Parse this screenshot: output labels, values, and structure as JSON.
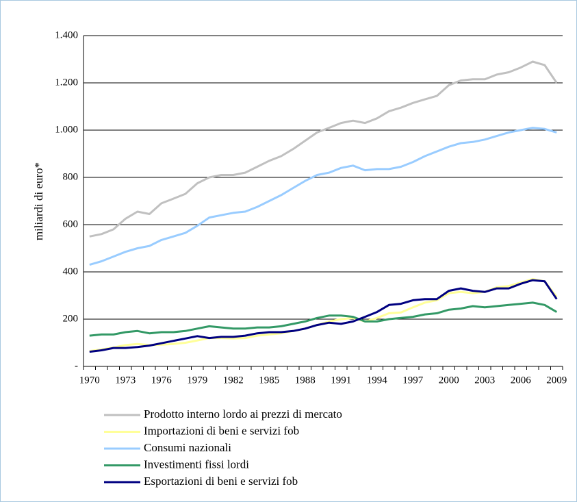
{
  "chart_data": {
    "type": "line",
    "y_label": "miliardi di euro*",
    "categories": [
      "1970",
      null,
      null,
      "1973",
      null,
      null,
      "1976",
      null,
      null,
      "1979",
      null,
      null,
      "1982",
      null,
      null,
      "1985",
      null,
      null,
      "1988",
      null,
      null,
      "1991",
      null,
      null,
      "1994",
      null,
      null,
      "1997",
      null,
      null,
      "2000",
      null,
      null,
      "2003",
      null,
      null,
      "2006",
      null,
      null,
      "2009"
    ],
    "ylim": [
      0,
      1400
    ],
    "yticks": [
      {
        "value": 0,
        "label": "-"
      },
      200,
      400,
      600,
      800,
      {
        "value": 1000,
        "label": "1.000"
      },
      {
        "value": 1200,
        "label": "1.200"
      },
      {
        "value": 1400,
        "label": "1.400"
      }
    ],
    "grid": true,
    "legend": "bottom",
    "series": [
      {
        "name": "Prodotto interno lordo ai prezzi di mercato",
        "color": "#c0c0c0",
        "values": [
          550,
          560,
          580,
          625,
          655,
          645,
          690,
          710,
          730,
          775,
          800,
          810,
          810,
          820,
          845,
          870,
          890,
          920,
          955,
          990,
          1010,
          1030,
          1040,
          1030,
          1050,
          1080,
          1095,
          1115,
          1130,
          1145,
          1190,
          1210,
          1215,
          1215,
          1235,
          1245,
          1265,
          1290,
          1275,
          1200
        ]
      },
      {
        "name": "Importazioni di beni e servizi fob",
        "color": "#ffff99",
        "values": [
          65,
          72,
          80,
          90,
          95,
          90,
          92,
          95,
          100,
          110,
          120,
          120,
          118,
          120,
          130,
          135,
          140,
          150,
          160,
          175,
          190,
          200,
          205,
          190,
          205,
          225,
          228,
          250,
          270,
          280,
          310,
          315,
          310,
          315,
          335,
          340,
          355,
          370,
          360,
          295
        ]
      },
      {
        "name": "Consumi nazionali",
        "color": "#99ccff",
        "values": [
          430,
          445,
          465,
          485,
          500,
          510,
          535,
          550,
          565,
          595,
          630,
          640,
          650,
          655,
          675,
          700,
          725,
          755,
          785,
          810,
          820,
          840,
          850,
          830,
          835,
          835,
          845,
          865,
          890,
          910,
          930,
          945,
          950,
          960,
          975,
          990,
          1000,
          1010,
          1005,
          990
        ]
      },
      {
        "name": "Investimenti fissi lordi",
        "color": "#339966",
        "values": [
          130,
          135,
          135,
          145,
          150,
          140,
          145,
          145,
          150,
          160,
          170,
          165,
          160,
          160,
          165,
          165,
          170,
          180,
          190,
          205,
          215,
          215,
          210,
          190,
          190,
          200,
          205,
          210,
          220,
          225,
          240,
          245,
          255,
          250,
          255,
          260,
          265,
          270,
          260,
          230
        ]
      },
      {
        "name": "Esportazioni di beni e servizi fob",
        "color": "#000080",
        "values": [
          62,
          68,
          78,
          78,
          82,
          88,
          98,
          108,
          118,
          128,
          120,
          125,
          125,
          130,
          140,
          145,
          145,
          150,
          160,
          175,
          185,
          180,
          190,
          210,
          230,
          260,
          265,
          280,
          285,
          285,
          320,
          330,
          320,
          315,
          330,
          330,
          350,
          365,
          360,
          285
        ]
      }
    ]
  }
}
